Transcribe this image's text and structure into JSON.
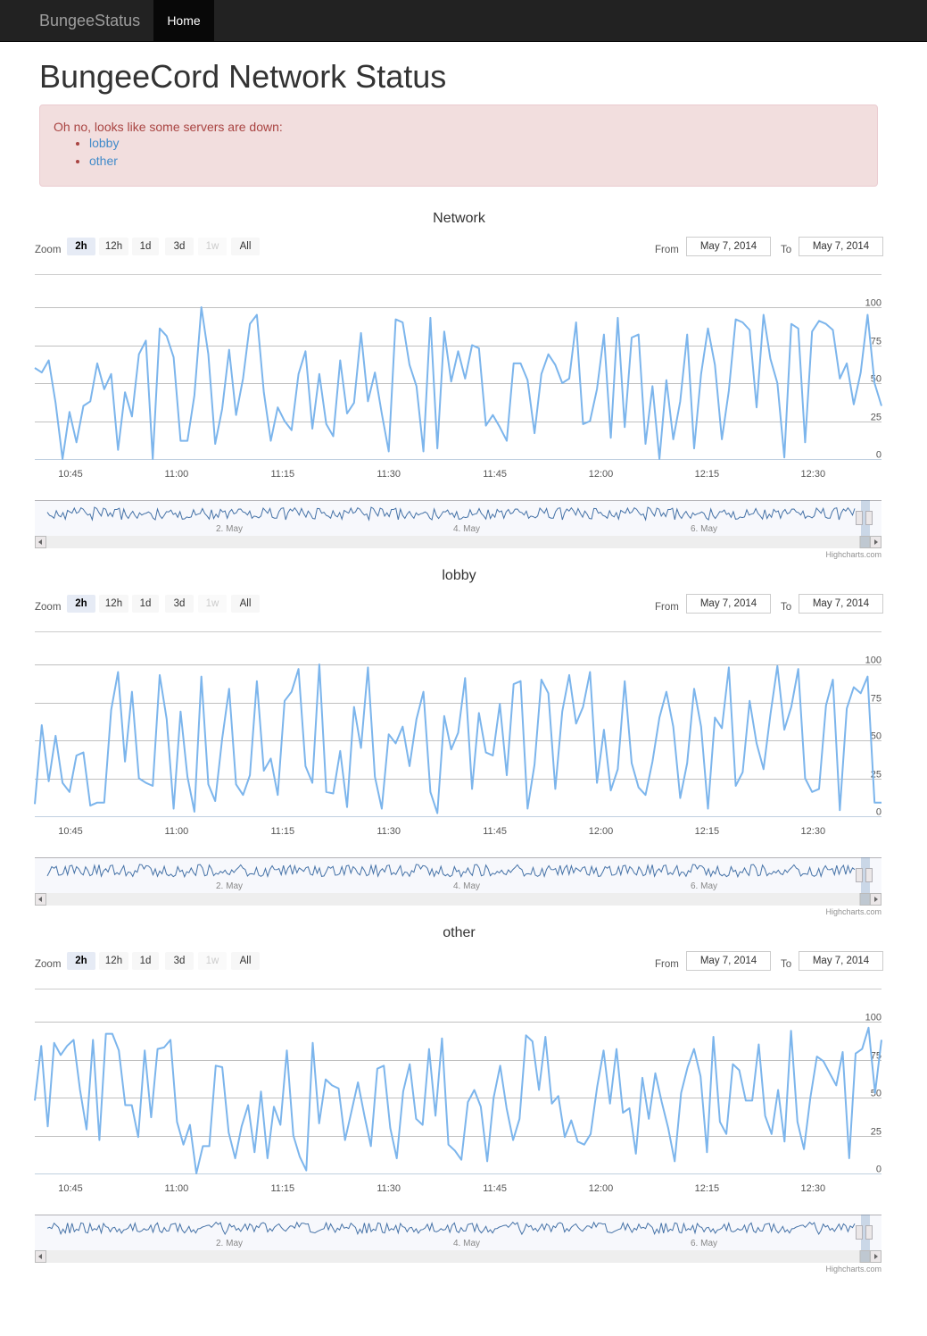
{
  "navbar": {
    "brand": "BungeeStatus",
    "home": "Home"
  },
  "page_title": "BungeeCord Network Status",
  "alert": {
    "message": "Oh no, looks like some servers are down:",
    "servers": [
      "lobby",
      "other"
    ]
  },
  "colors": {
    "series": "#7cb5ec",
    "navigator_series": "#4572a7",
    "alert_bg": "#f2dede",
    "alert_text": "#a94442",
    "link": "#428bca"
  },
  "controls": {
    "zoom_label": "Zoom",
    "zoom_buttons": [
      "2h",
      "12h",
      "1d",
      "3d",
      "1w",
      "All"
    ],
    "zoom_active": "2h",
    "zoom_disabled": "1w",
    "from_label": "From",
    "to_label": "To",
    "from_value": "May 7, 2014",
    "to_value": "May 7, 2014"
  },
  "credits": "Highcharts.com",
  "chart_data": [
    {
      "type": "line",
      "title": "Network",
      "x_ticks": [
        "10:45",
        "11:00",
        "11:15",
        "11:30",
        "11:45",
        "12:00",
        "12:15",
        "12:30"
      ],
      "y_ticks": [
        0,
        25,
        50,
        75,
        100
      ],
      "ylim": [
        0,
        100
      ],
      "grid": true,
      "navigator_labels": [
        "2. May",
        "4. May",
        "6. May"
      ],
      "series": [
        {
          "values": [
            60,
            57,
            65,
            37,
            0,
            31,
            11,
            35,
            38,
            63,
            46,
            56,
            6,
            44,
            28,
            69,
            78,
            0,
            86,
            81,
            67,
            12,
            12,
            42,
            100,
            69,
            10,
            33,
            72,
            29,
            53,
            89,
            95,
            44,
            12,
            34,
            25,
            19,
            56,
            71,
            20,
            56,
            23,
            15,
            65,
            30,
            37,
            83,
            38,
            57,
            30,
            5,
            92,
            90,
            62,
            48,
            5,
            93,
            7,
            84,
            51,
            71,
            53,
            75,
            73,
            22,
            29,
            21,
            12,
            63,
            63,
            52,
            17,
            56,
            69,
            62,
            50,
            53,
            90,
            23,
            25,
            46,
            82,
            14,
            93,
            21,
            80,
            82,
            10,
            48,
            0,
            52,
            13,
            38,
            82,
            7,
            56,
            86,
            62,
            13,
            45,
            92,
            90,
            85,
            34,
            95,
            66,
            50,
            1,
            89,
            86,
            11,
            84,
            91,
            89,
            85,
            53,
            63,
            36,
            57,
            95,
            50,
            35
          ]
        }
      ]
    },
    {
      "type": "line",
      "title": "lobby",
      "x_ticks": [
        "10:45",
        "11:00",
        "11:15",
        "11:30",
        "11:45",
        "12:00",
        "12:15",
        "12:30"
      ],
      "y_ticks": [
        0,
        25,
        50,
        75,
        100
      ],
      "ylim": [
        0,
        100
      ],
      "grid": true,
      "navigator_labels": [
        "2. May",
        "4. May",
        "6. May"
      ],
      "series": [
        {
          "values": [
            8,
            60,
            23,
            53,
            22,
            16,
            40,
            42,
            7,
            9,
            9,
            70,
            95,
            36,
            82,
            25,
            22,
            20,
            93,
            64,
            5,
            69,
            26,
            3,
            92,
            21,
            10,
            51,
            84,
            21,
            14,
            27,
            89,
            30,
            38,
            14,
            76,
            82,
            97,
            33,
            22,
            100,
            16,
            15,
            43,
            6,
            72,
            45,
            98,
            26,
            5,
            54,
            48,
            59,
            33,
            64,
            82,
            16,
            2,
            66,
            44,
            55,
            91,
            18,
            68,
            42,
            40,
            74,
            27,
            87,
            89,
            5,
            34,
            90,
            81,
            18,
            69,
            93,
            61,
            72,
            95,
            22,
            57,
            17,
            31,
            89,
            35,
            19,
            14,
            36,
            65,
            82,
            59,
            12,
            35,
            84,
            59,
            5,
            65,
            58,
            98,
            20,
            29,
            76,
            48,
            31,
            67,
            99,
            57,
            72,
            97,
            25,
            16,
            18,
            73,
            90,
            4,
            71,
            85,
            81,
            92,
            9,
            9
          ]
        }
      ]
    },
    {
      "type": "line",
      "title": "other",
      "x_ticks": [
        "10:45",
        "11:00",
        "11:15",
        "11:30",
        "11:45",
        "12:00",
        "12:15",
        "12:30"
      ],
      "y_ticks": [
        0,
        25,
        50,
        75,
        100
      ],
      "ylim": [
        0,
        100
      ],
      "grid": true,
      "navigator_labels": [
        "2. May",
        "4. May",
        "6. May"
      ],
      "series": [
        {
          "values": [
            48,
            84,
            31,
            86,
            78,
            84,
            88,
            55,
            29,
            88,
            22,
            92,
            92,
            81,
            45,
            45,
            24,
            81,
            37,
            82,
            83,
            88,
            34,
            19,
            32,
            0,
            18,
            18,
            71,
            70,
            27,
            10,
            31,
            45,
            14,
            54,
            10,
            44,
            32,
            81,
            25,
            11,
            2,
            86,
            33,
            62,
            58,
            56,
            22,
            41,
            60,
            38,
            18,
            69,
            71,
            30,
            10,
            54,
            72,
            36,
            32,
            82,
            38,
            89,
            19,
            15,
            9,
            47,
            55,
            44,
            8,
            50,
            71,
            43,
            22,
            36,
            91,
            87,
            55,
            90,
            46,
            51,
            24,
            35,
            21,
            19,
            26,
            57,
            81,
            46,
            82,
            40,
            43,
            13,
            63,
            36,
            66,
            47,
            30,
            8,
            53,
            70,
            82,
            64,
            14,
            90,
            34,
            26,
            72,
            68,
            48,
            48,
            85,
            38,
            26,
            55,
            21,
            94,
            34,
            16,
            50,
            77,
            74,
            66,
            58,
            80,
            10,
            79,
            82,
            96,
            53,
            88
          ]
        }
      ]
    }
  ]
}
